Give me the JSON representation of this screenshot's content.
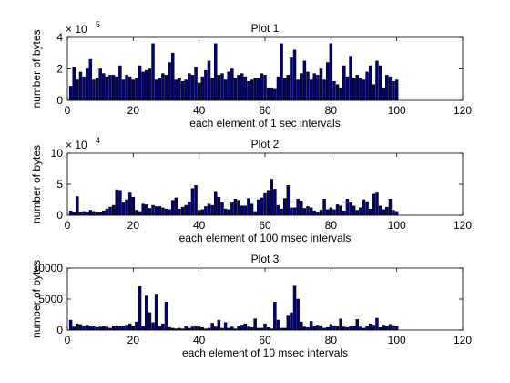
{
  "colors": {
    "bar_fill": "#000080",
    "bar_edge": "#000000",
    "axes": "#000000",
    "background": "#ffffff"
  },
  "chart_data": [
    {
      "type": "bar",
      "title": "Plot 1",
      "xlabel": "each element of 1 sec intervals",
      "ylabel": "number of bytes",
      "exponent_label": "× 10",
      "exponent_power": "5",
      "xlim": [
        0,
        120
      ],
      "ylim": [
        0,
        4
      ],
      "xticks": [
        "0",
        "20",
        "40",
        "60",
        "80",
        "100",
        "120"
      ],
      "yticks": [
        "0",
        "2",
        "4"
      ],
      "x": [
        1,
        2,
        3,
        4,
        5,
        6,
        7,
        8,
        9,
        10,
        11,
        12,
        13,
        14,
        15,
        16,
        17,
        18,
        19,
        20,
        21,
        22,
        23,
        24,
        25,
        26,
        27,
        28,
        29,
        30,
        31,
        32,
        33,
        34,
        35,
        36,
        37,
        38,
        39,
        40,
        41,
        42,
        43,
        44,
        45,
        46,
        47,
        48,
        49,
        50,
        51,
        52,
        53,
        54,
        55,
        56,
        57,
        58,
        59,
        60,
        61,
        62,
        63,
        64,
        65,
        66,
        67,
        68,
        69,
        70,
        71,
        72,
        73,
        74,
        75,
        76,
        77,
        78,
        79,
        80,
        81,
        82,
        83,
        84,
        85,
        86,
        87,
        88,
        89,
        90,
        91,
        92,
        93,
        94,
        95,
        96,
        97,
        98,
        99,
        100
      ],
      "values": [
        0.9,
        2.1,
        1.3,
        1.8,
        1.5,
        2.0,
        2.6,
        1.3,
        1.4,
        2.0,
        1.7,
        1.5,
        1.6,
        1.6,
        1.5,
        2.2,
        1.3,
        1.6,
        1.5,
        1.3,
        1.4,
        2.2,
        1.8,
        1.9,
        2.0,
        3.6,
        1.3,
        1.4,
        1.7,
        1.6,
        2.4,
        3.0,
        1.3,
        1.4,
        1.2,
        1.3,
        1.7,
        1.6,
        2.1,
        1.1,
        1.5,
        1.9,
        2.5,
        1.4,
        3.6,
        1.6,
        1.7,
        1.3,
        1.8,
        2.0,
        1.4,
        1.6,
        1.7,
        1.5,
        1.2,
        1.3,
        1.4,
        1.4,
        1.7,
        1.6,
        0.8,
        0.8,
        0.7,
        1.5,
        3.6,
        1.4,
        1.6,
        2.7,
        3.2,
        1.3,
        1.7,
        2.5,
        1.8,
        1.3,
        1.7,
        1.6,
        2.0,
        1.3,
        2.4,
        3.6,
        1.2,
        1.0,
        0.8,
        2.2,
        1.5,
        2.8,
        1.4,
        1.6,
        1.4,
        1.3,
        1.8,
        2.2,
        1.0,
        2.5,
        2.2,
        0.8,
        1.6,
        1.5,
        1.2,
        1.3
      ]
    },
    {
      "type": "bar",
      "title": "Plot 2",
      "xlabel": "each element of 100 msec intervals",
      "ylabel": "number of bytes",
      "exponent_label": "× 10",
      "exponent_power": "4",
      "xlim": [
        0,
        120
      ],
      "ylim": [
        0,
        10
      ],
      "xticks": [
        "0",
        "20",
        "40",
        "60",
        "80",
        "100",
        "120"
      ],
      "yticks": [
        "0",
        "5",
        "10"
      ],
      "x": [
        1,
        2,
        3,
        4,
        5,
        6,
        7,
        8,
        9,
        10,
        11,
        12,
        13,
        14,
        15,
        16,
        17,
        18,
        19,
        20,
        21,
        22,
        23,
        24,
        25,
        26,
        27,
        28,
        29,
        30,
        31,
        32,
        33,
        34,
        35,
        36,
        37,
        38,
        39,
        40,
        41,
        42,
        43,
        44,
        45,
        46,
        47,
        48,
        49,
        50,
        51,
        52,
        53,
        54,
        55,
        56,
        57,
        58,
        59,
        60,
        61,
        62,
        63,
        64,
        65,
        66,
        67,
        68,
        69,
        70,
        71,
        72,
        73,
        74,
        75,
        76,
        77,
        78,
        79,
        80,
        81,
        82,
        83,
        84,
        85,
        86,
        87,
        88,
        89,
        90,
        91,
        92,
        93,
        94,
        95,
        96,
        97,
        98,
        99,
        100
      ],
      "values": [
        0.7,
        0.5,
        3.0,
        0.5,
        0.6,
        0.4,
        0.8,
        0.6,
        0.5,
        0.5,
        0.7,
        1.0,
        1.3,
        1.6,
        4.1,
        4.0,
        2.0,
        2.5,
        3.6,
        2.9,
        0.8,
        0.6,
        1.8,
        1.7,
        1.1,
        1.6,
        1.4,
        1.4,
        1.2,
        1.0,
        0.9,
        2.4,
        2.8,
        1.0,
        1.3,
        1.6,
        2.1,
        4.3,
        4.8,
        0.8,
        0.9,
        1.4,
        1.8,
        1.6,
        3.7,
        2.9,
        2.0,
        1.0,
        0.9,
        2.0,
        2.6,
        2.4,
        1.5,
        1.5,
        2.7,
        1.8,
        0.6,
        2.5,
        2.8,
        3.5,
        4.0,
        5.8,
        4.2,
        1.6,
        1.0,
        2.7,
        4.8,
        1.2,
        1.2,
        2.6,
        2.3,
        1.1,
        1.4,
        1.2,
        0.7,
        0.5,
        0.8,
        2.6,
        0.9,
        1.2,
        0.9,
        1.7,
        1.5,
        0.7,
        2.6,
        2.0,
        1.5,
        0.8,
        1.2,
        2.5,
        2.2,
        1.0,
        3.4,
        3.6,
        1.5,
        0.9,
        1.3,
        2.6,
        0.8,
        0.6
      ]
    },
    {
      "type": "bar",
      "title": "Plot 3",
      "xlabel": "each element of 10 msec intervals",
      "ylabel": "number of bytes",
      "xlim": [
        0,
        120
      ],
      "ylim": [
        0,
        10000
      ],
      "xticks": [
        "0",
        "20",
        "40",
        "60",
        "80",
        "100",
        "120"
      ],
      "yticks": [
        "0",
        "5000",
        "10000"
      ],
      "x": [
        1,
        2,
        3,
        4,
        5,
        6,
        7,
        8,
        9,
        10,
        11,
        12,
        13,
        14,
        15,
        16,
        17,
        18,
        19,
        20,
        21,
        22,
        23,
        24,
        25,
        26,
        27,
        28,
        29,
        30,
        31,
        32,
        33,
        34,
        35,
        36,
        37,
        38,
        39,
        40,
        41,
        42,
        43,
        44,
        45,
        46,
        47,
        48,
        49,
        50,
        51,
        52,
        53,
        54,
        55,
        56,
        57,
        58,
        59,
        60,
        61,
        62,
        63,
        64,
        65,
        66,
        67,
        68,
        69,
        70,
        71,
        72,
        73,
        74,
        75,
        76,
        77,
        78,
        79,
        80,
        81,
        82,
        83,
        84,
        85,
        86,
        87,
        88,
        89,
        90,
        91,
        92,
        93,
        94,
        95,
        96,
        97,
        98,
        99,
        100
      ],
      "values": [
        1600,
        500,
        1000,
        900,
        700,
        800,
        700,
        600,
        400,
        500,
        600,
        500,
        300,
        600,
        700,
        600,
        700,
        800,
        1000,
        600,
        1300,
        7000,
        600,
        5500,
        2800,
        1200,
        5800,
        600,
        1000,
        4500,
        400,
        300,
        200,
        300,
        200,
        600,
        300,
        500,
        700,
        500,
        400,
        200,
        300,
        1100,
        500,
        1600,
        300,
        1200,
        300,
        500,
        200,
        600,
        800,
        1000,
        500,
        400,
        1800,
        300,
        300,
        1000,
        400,
        200,
        4500,
        1600,
        300,
        300,
        2400,
        2800,
        7100,
        5000,
        1300,
        500,
        400,
        1400,
        600,
        800,
        700,
        300,
        400,
        900,
        700,
        600,
        1800,
        500,
        400,
        700,
        600,
        1700,
        500,
        300,
        600,
        1000,
        800,
        1900,
        400,
        800,
        600,
        900,
        700,
        600
      ]
    }
  ]
}
